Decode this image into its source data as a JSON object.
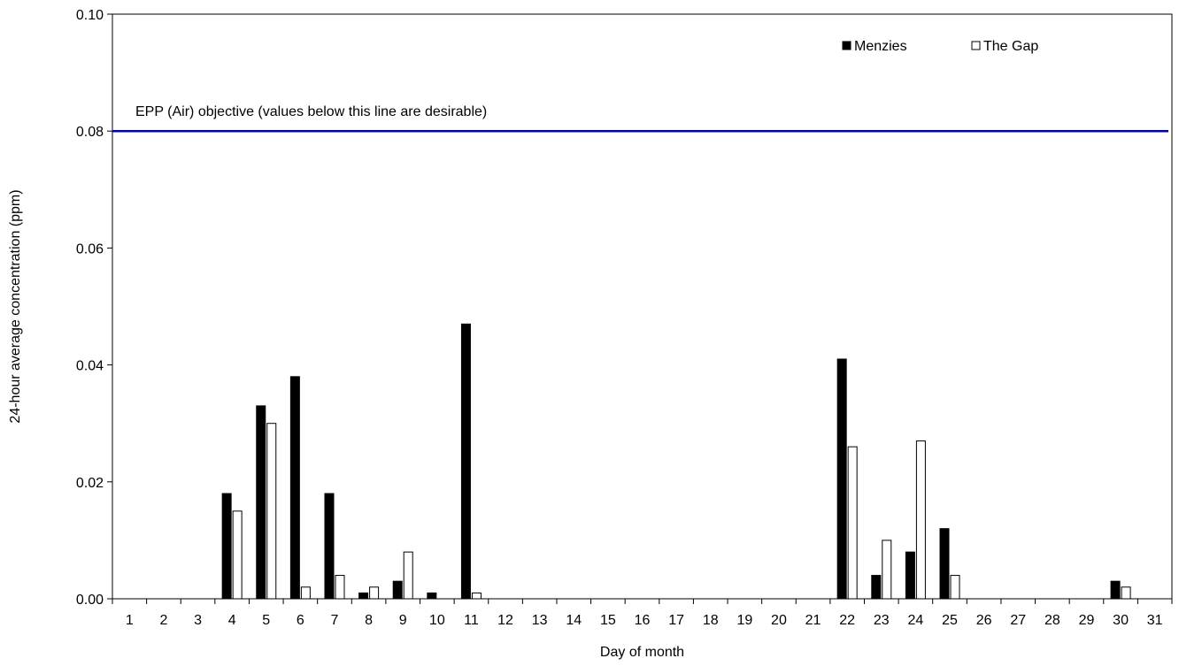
{
  "chart_data": {
    "type": "bar",
    "xlabel": "Day of month",
    "ylabel": "24-hour average concentration (ppm)",
    "ylim": [
      0,
      0.1
    ],
    "yticks": [
      "0.00",
      "0.02",
      "0.04",
      "0.06",
      "0.08",
      "0.10"
    ],
    "ytick_values": [
      0,
      0.02,
      0.04,
      0.06,
      0.08,
      0.1
    ],
    "grid": false,
    "legend_position": "top-right",
    "categories": [
      "1",
      "2",
      "3",
      "4",
      "5",
      "6",
      "7",
      "8",
      "9",
      "10",
      "11",
      "12",
      "13",
      "14",
      "15",
      "16",
      "17",
      "18",
      "19",
      "20",
      "21",
      "22",
      "23",
      "24",
      "25",
      "26",
      "27",
      "28",
      "29",
      "30",
      "31"
    ],
    "series": [
      {
        "name": "Menzies",
        "color": "#000000",
        "values": [
          0,
          0,
          0,
          0.018,
          0.033,
          0.038,
          0.018,
          0.001,
          0.003,
          0.001,
          0.047,
          0,
          0,
          0,
          0,
          0,
          0,
          0,
          0,
          0,
          0,
          0.041,
          0.004,
          0.008,
          0.012,
          0,
          0,
          0,
          0,
          0.003,
          0
        ]
      },
      {
        "name": "The Gap",
        "color": "#ffffff",
        "values": [
          0,
          0,
          0,
          0.015,
          0.03,
          0.002,
          0.004,
          0.002,
          0.008,
          0,
          0.001,
          0,
          0,
          0,
          0,
          0,
          0,
          0,
          0,
          0,
          0,
          0.026,
          0.01,
          0.027,
          0.004,
          0,
          0,
          0,
          0,
          0.002,
          0
        ]
      }
    ],
    "reference_line": {
      "value": 0.08,
      "label": "EPP (Air) objective (values below this line are desirable)",
      "color": "#0000c0"
    }
  }
}
